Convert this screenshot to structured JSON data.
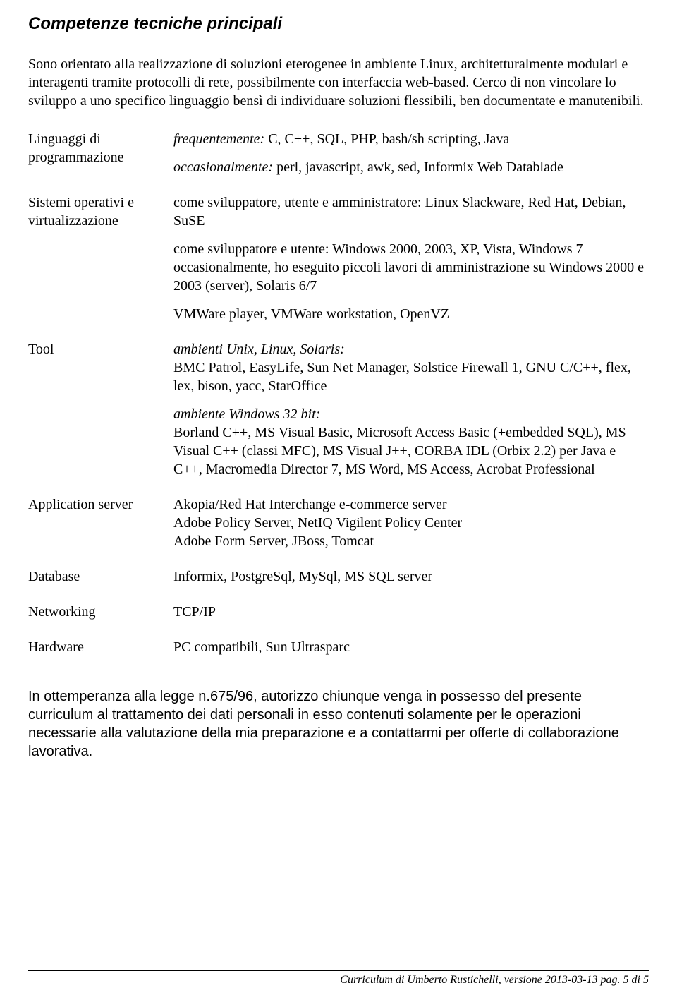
{
  "heading": "Competenze tecniche principali",
  "intro": "Sono orientato alla realizzazione di soluzioni eterogenee in ambiente Linux, architetturalmente modulari e interagenti tramite protocolli di rete, possibilmente con interfaccia web-based.\nCerco di non vincolare lo sviluppo a uno specifico linguaggio bensì di individuare soluzioni flessibili, ben documentate e manutenibili.",
  "rows": {
    "linguaggi": {
      "label": "Linguaggi di programmazione",
      "freq_label": "frequentemente:",
      "freq_text": " C, C++, SQL, PHP, bash/sh scripting, Java",
      "occ_label": "occasionalmente:",
      "occ_text": " perl, javascript, awk, sed, Informix Web Datablade"
    },
    "sistemi": {
      "label": "Sistemi operativi e virtualizzazione",
      "p1": "come sviluppatore, utente e amministratore: Linux Slackware, Red Hat, Debian, SuSE",
      "p2": "come sviluppatore e utente: Windows 2000, 2003, XP, Vista, Windows 7 occasionalmente, ho eseguito piccoli lavori di amministrazione su Windows 2000 e 2003 (server), Solaris 6/7",
      "p3": "VMWare player, VMWare workstation, OpenVZ"
    },
    "tool": {
      "label": "Tool",
      "p1_label": "ambienti Unix, Linux, Solaris:",
      "p1_text": "BMC Patrol, EasyLife, Sun Net Manager, Solstice Firewall 1, GNU C/C++, flex, lex, bison, yacc, StarOffice",
      "p2_label": "ambiente Windows 32 bit:",
      "p2_text": "Borland C++, MS Visual Basic, Microsoft Access Basic (+embedded SQL), MS Visual C++ (classi MFC), MS Visual J++, CORBA IDL (Orbix 2.2) per Java e C++, Macromedia Director 7, MS Word, MS Access, Acrobat Professional"
    },
    "appserver": {
      "label": "Application server",
      "p1": "Akopia/Red Hat Interchange e-commerce server",
      "p2": "Adobe Policy Server, NetIQ Vigilent Policy Center",
      "p3": "Adobe Form Server, JBoss, Tomcat"
    },
    "database": {
      "label": "Database",
      "text": "Informix, PostgreSql, MySql, MS SQL server"
    },
    "networking": {
      "label": "Networking",
      "text": "TCP/IP"
    },
    "hardware": {
      "label": "Hardware",
      "text": "PC compatibili, Sun Ultrasparc"
    }
  },
  "privacy": "In ottemperanza alla legge n.675/96, autorizzo chiunque venga in possesso del presente curriculum al trattamento dei dati personali in esso contenuti solamente per le operazioni necessarie alla valutazione della mia preparazione e a contattarmi per offerte di collaborazione lavorativa.",
  "footer": "Curriculum di Umberto Rustichelli, versione 2013-03-13    pag. 5 di 5"
}
